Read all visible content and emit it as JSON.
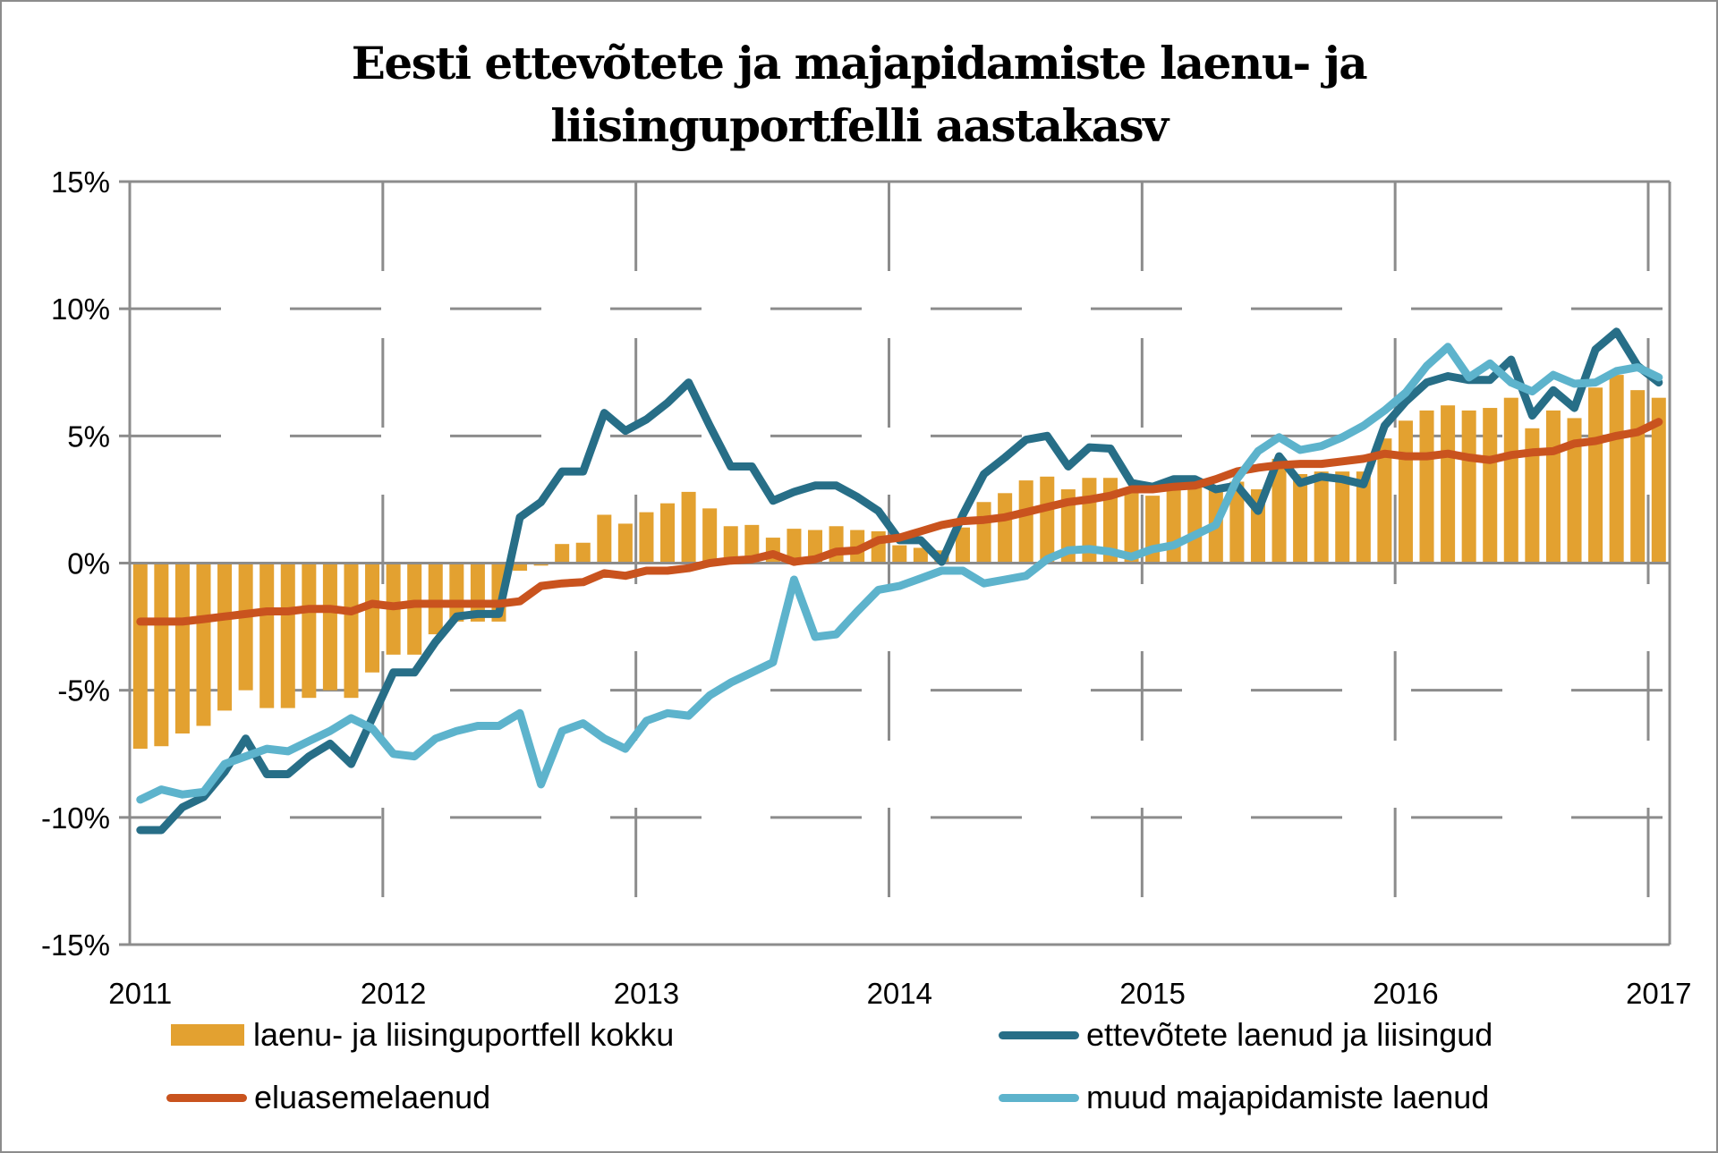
{
  "chart_data": {
    "type": "bar+line",
    "title": "Eesti ettevõtete ja majapidamiste laenu- ja liisinguportfelli aastakasv",
    "title_lines": [
      "Eesti ettevõtete ja majapidamiste laenu- ja",
      "liisinguportfelli aastakasv"
    ],
    "xlabel": "",
    "ylabel": "",
    "ylim": [
      -15,
      15
    ],
    "y_ticks": [
      15,
      10,
      5,
      0,
      -5,
      -10,
      -15
    ],
    "y_tick_labels": [
      "15%",
      "10%",
      "5%",
      "0%",
      "-5%",
      "-10%",
      "-15%"
    ],
    "x_start": "2011-01",
    "x_end": "2017-01",
    "frequency": "monthly",
    "x_tick_labels": [
      "2011",
      "2012",
      "2013",
      "2014",
      "2015",
      "2016",
      "2017"
    ],
    "grid": true,
    "legend_position": "bottom",
    "series": [
      {
        "name": "laenu- ja liisinguportfell kokku",
        "kind": "bar",
        "color": "#E3A130",
        "values": [
          -7.3,
          -7.2,
          -6.7,
          -6.4,
          -5.8,
          -5.0,
          -5.7,
          -5.7,
          -5.3,
          -5.0,
          -5.3,
          -4.3,
          -3.6,
          -3.6,
          -2.8,
          -2.3,
          -2.3,
          -2.3,
          -0.3,
          -0.1,
          0.75,
          0.8,
          1.9,
          1.55,
          2.0,
          2.35,
          2.8,
          2.15,
          1.45,
          1.5,
          1.0,
          1.35,
          1.3,
          1.45,
          1.3,
          1.25,
          0.7,
          0.6,
          0.5,
          1.4,
          2.4,
          2.75,
          3.25,
          3.4,
          2.9,
          3.35,
          3.35,
          2.95,
          2.65,
          2.9,
          3.05,
          2.9,
          3.2,
          2.9,
          4.1,
          3.5,
          3.6,
          3.6,
          3.6,
          4.9,
          5.6,
          6.0,
          6.2,
          6.0,
          6.1,
          6.5,
          5.3,
          6.0,
          5.7,
          6.9,
          7.4,
          6.8,
          6.5
        ]
      },
      {
        "name": "ettevõtete laenud ja liisingud",
        "kind": "line",
        "color": "#276E87",
        "values": [
          -10.5,
          -10.5,
          -9.6,
          -9.2,
          -8.2,
          -6.9,
          -8.3,
          -8.3,
          -7.6,
          -7.1,
          -7.9,
          -6.1,
          -4.3,
          -4.3,
          -3.1,
          -2.1,
          -2.0,
          -2.0,
          1.8,
          2.4,
          3.6,
          3.6,
          5.9,
          5.2,
          5.65,
          6.3,
          7.1,
          5.4,
          3.8,
          3.8,
          2.45,
          2.8,
          3.05,
          3.05,
          2.6,
          2.05,
          0.9,
          0.9,
          0.05,
          1.9,
          3.5,
          4.15,
          4.85,
          5.0,
          3.8,
          4.55,
          4.5,
          3.15,
          3.0,
          3.3,
          3.3,
          2.9,
          3.05,
          2.05,
          4.2,
          3.15,
          3.4,
          3.3,
          3.1,
          5.4,
          6.35,
          7.1,
          7.35,
          7.2,
          7.2,
          8.0,
          5.8,
          6.8,
          6.1,
          8.4,
          9.1,
          7.75,
          7.1
        ]
      },
      {
        "name": "eluasemelaenud",
        "kind": "line",
        "color": "#C9531E",
        "values": [
          -2.3,
          -2.3,
          -2.3,
          -2.2,
          -2.1,
          -2.0,
          -1.9,
          -1.9,
          -1.8,
          -1.8,
          -1.9,
          -1.6,
          -1.7,
          -1.6,
          -1.6,
          -1.6,
          -1.6,
          -1.6,
          -1.5,
          -0.9,
          -0.8,
          -0.75,
          -0.4,
          -0.5,
          -0.3,
          -0.3,
          -0.2,
          0.0,
          0.1,
          0.15,
          0.35,
          0.05,
          0.15,
          0.45,
          0.5,
          0.9,
          1.0,
          1.25,
          1.5,
          1.65,
          1.7,
          1.8,
          2.0,
          2.2,
          2.4,
          2.5,
          2.65,
          2.9,
          2.9,
          3.0,
          3.05,
          3.3,
          3.6,
          3.75,
          3.85,
          3.9,
          3.9,
          4.0,
          4.1,
          4.3,
          4.2,
          4.2,
          4.3,
          4.15,
          4.05,
          4.25,
          4.35,
          4.4,
          4.7,
          4.8,
          5.0,
          5.15,
          5.55
        ]
      },
      {
        "name": "muud majapidamiste laenud",
        "kind": "line",
        "color": "#5DB3CC",
        "values": [
          -9.3,
          -8.9,
          -9.1,
          -9.0,
          -7.9,
          -7.6,
          -7.3,
          -7.4,
          -7.0,
          -6.6,
          -6.1,
          -6.5,
          -7.5,
          -7.6,
          -6.9,
          -6.6,
          -6.4,
          -6.4,
          -5.9,
          -8.7,
          -6.6,
          -6.3,
          -6.9,
          -7.3,
          -6.2,
          -5.9,
          -6.0,
          -5.2,
          -4.7,
          -4.3,
          -3.9,
          -0.65,
          -2.9,
          -2.8,
          -1.9,
          -1.05,
          -0.9,
          -0.6,
          -0.3,
          -0.3,
          -0.8,
          -0.65,
          -0.5,
          0.15,
          0.5,
          0.55,
          0.45,
          0.25,
          0.55,
          0.7,
          1.1,
          1.5,
          3.3,
          4.4,
          4.95,
          4.45,
          4.6,
          4.95,
          5.4,
          6.0,
          6.7,
          7.75,
          8.5,
          7.3,
          7.85,
          7.1,
          6.75,
          7.4,
          7.05,
          7.1,
          7.55,
          7.7,
          7.3
        ]
      }
    ]
  },
  "legend": {
    "items": [
      {
        "label": "laenu- ja liisinguportfell kokku",
        "color": "#E3A130",
        "kind": "bar"
      },
      {
        "label": "ettevõtete laenud ja liisingud",
        "color": "#276E87",
        "kind": "line"
      },
      {
        "label": "eluasemelaenud",
        "color": "#C9531E",
        "kind": "line"
      },
      {
        "label": "muud majapidamiste laenud",
        "color": "#5DB3CC",
        "kind": "line"
      }
    ]
  },
  "colors": {
    "grid": "#8C8C8C",
    "axis": "#8C8C8C",
    "background": "#FFFFFF"
  }
}
